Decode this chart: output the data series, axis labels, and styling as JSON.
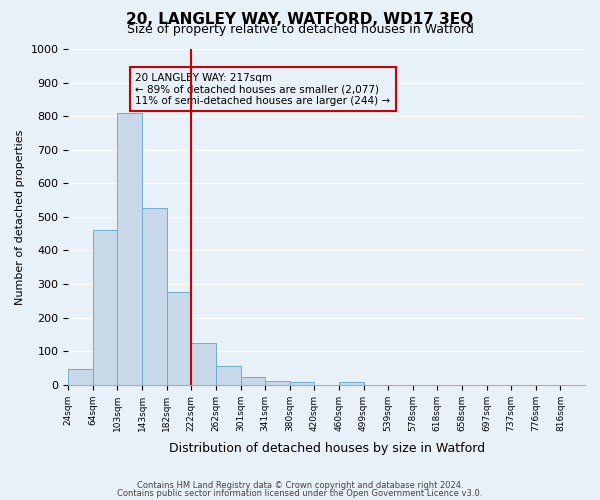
{
  "title": "20, LANGLEY WAY, WATFORD, WD17 3EQ",
  "subtitle": "Size of property relative to detached houses in Watford",
  "bar_values": [
    46,
    460,
    810,
    527,
    275,
    125,
    57,
    24,
    12,
    8,
    0,
    8,
    0,
    0,
    0,
    0,
    0,
    0,
    0
  ],
  "bin_labels": [
    "24sqm",
    "64sqm",
    "103sqm",
    "143sqm",
    "182sqm",
    "222sqm",
    "262sqm",
    "301sqm",
    "341sqm",
    "380sqm",
    "420sqm",
    "460sqm",
    "499sqm",
    "539sqm",
    "578sqm",
    "618sqm",
    "658sqm",
    "697sqm",
    "737sqm",
    "776sqm",
    "816sqm"
  ],
  "bar_color": "#c8d8e8",
  "bar_edge_color": "#6baed6",
  "vline_x": 5,
  "vline_color": "#cc0000",
  "ylabel": "Number of detached properties",
  "xlabel": "Distribution of detached houses by size in Watford",
  "ylim": [
    0,
    1000
  ],
  "yticks": [
    0,
    100,
    200,
    300,
    400,
    500,
    600,
    700,
    800,
    900,
    1000
  ],
  "annotation_title": "20 LANGLEY WAY: 217sqm",
  "annotation_line1": "← 89% of detached houses are smaller (2,077)",
  "annotation_line2": "11% of semi-detached houses are larger (244) →",
  "box_color": "#cc0000",
  "footer1": "Contains HM Land Registry data © Crown copyright and database right 2024.",
  "footer2": "Contains public sector information licensed under the Open Government Licence v3.0.",
  "bg_color": "#e8f0f8",
  "grid_color": "#ffffff"
}
